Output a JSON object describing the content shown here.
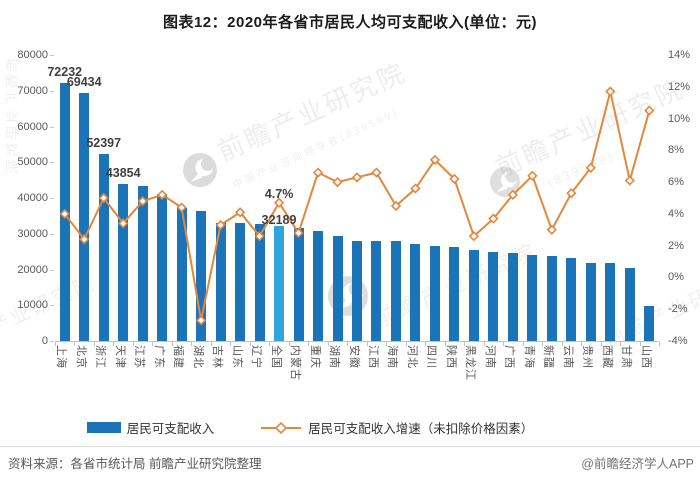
{
  "title": "图表12：2020年各省市居民人均可支配收入(单位：元)",
  "legend": {
    "bar_label": "居民可支配收入",
    "line_label": "居民可支配收入增速（未扣除价格因素）"
  },
  "footer": {
    "source": "资料来源：各省市统计局 前瞻产业研究院整理",
    "credit": "@前瞻经济学人APP"
  },
  "watermark": {
    "brand_text": "前瞻产业研究院",
    "sub_text": "中国产业咨询领导者",
    "code_text": "(839599)",
    "logo_name": "qianzhan-logo-circle"
  },
  "colors": {
    "bar": "#1B74B8",
    "bar_highlight": "#31A5DB",
    "line": "#E2873C",
    "axis_text": "#595959",
    "value_label": "#404040"
  },
  "chart_data": {
    "type": "bar",
    "subtype": "combo-bar-line-dual-axis",
    "title": "图表12：2020年各省市居民人均可支配收入(单位：元)",
    "categories": [
      "上海",
      "北京",
      "浙江",
      "天津",
      "江苏",
      "广东",
      "福建",
      "湖北",
      "吉林",
      "山东",
      "辽宁",
      "全国",
      "内蒙古",
      "重庆",
      "湖南",
      "安徽",
      "江西",
      "海南",
      "河北",
      "四川",
      "陕西",
      "黑龙江",
      "河南",
      "广西",
      "青海",
      "新疆",
      "云南",
      "贵州",
      "西藏",
      "甘肃",
      "山西"
    ],
    "series": [
      {
        "name": "居民可支配收入",
        "type": "bar",
        "axis": "left",
        "unit": "元",
        "values": [
          72232,
          69434,
          52397,
          43854,
          43390,
          41029,
          37202,
          36500,
          33000,
          32886,
          32738,
          32189,
          31497,
          30824,
          29380,
          28103,
          28016,
          27904,
          27136,
          26522,
          26226,
          25358,
          24810,
          24562,
          24037,
          23845,
          23295,
          21795,
          21744,
          20335,
          9800
        ]
      },
      {
        "name": "居民可支配收入增速（未扣除价格因素）",
        "type": "line",
        "axis": "right",
        "unit": "%",
        "values": [
          4.0,
          2.4,
          5.0,
          3.4,
          4.8,
          5.2,
          4.4,
          -2.7,
          3.3,
          4.1,
          2.6,
          4.7,
          2.8,
          6.6,
          6.0,
          6.3,
          6.6,
          4.5,
          5.6,
          7.4,
          6.2,
          2.6,
          3.7,
          5.2,
          6.4,
          3.0,
          5.3,
          6.9,
          11.7,
          6.1,
          10.5
        ]
      }
    ],
    "left_axis": {
      "min": 0,
      "max": 80000,
      "tick_step": 10000,
      "tick_labels": [
        "80000",
        "70000",
        "60000",
        "50000",
        "40000",
        "30000",
        "20000",
        "10000",
        "0"
      ]
    },
    "right_axis": {
      "min": -4,
      "max": 14,
      "tick_step": 2,
      "tick_labels": [
        "14%",
        "12%",
        "10%",
        "8%",
        "6%",
        "4%",
        "2%",
        "0%",
        "-2%",
        "-4%"
      ]
    },
    "highlight_index": 11,
    "bar_value_labels": {
      "0": "72232",
      "1": "69434",
      "2": "52397",
      "3": "43854",
      "11": "32189"
    },
    "line_value_labels": {
      "11": "4.7%"
    },
    "grid": false,
    "legend_position": "bottom"
  }
}
